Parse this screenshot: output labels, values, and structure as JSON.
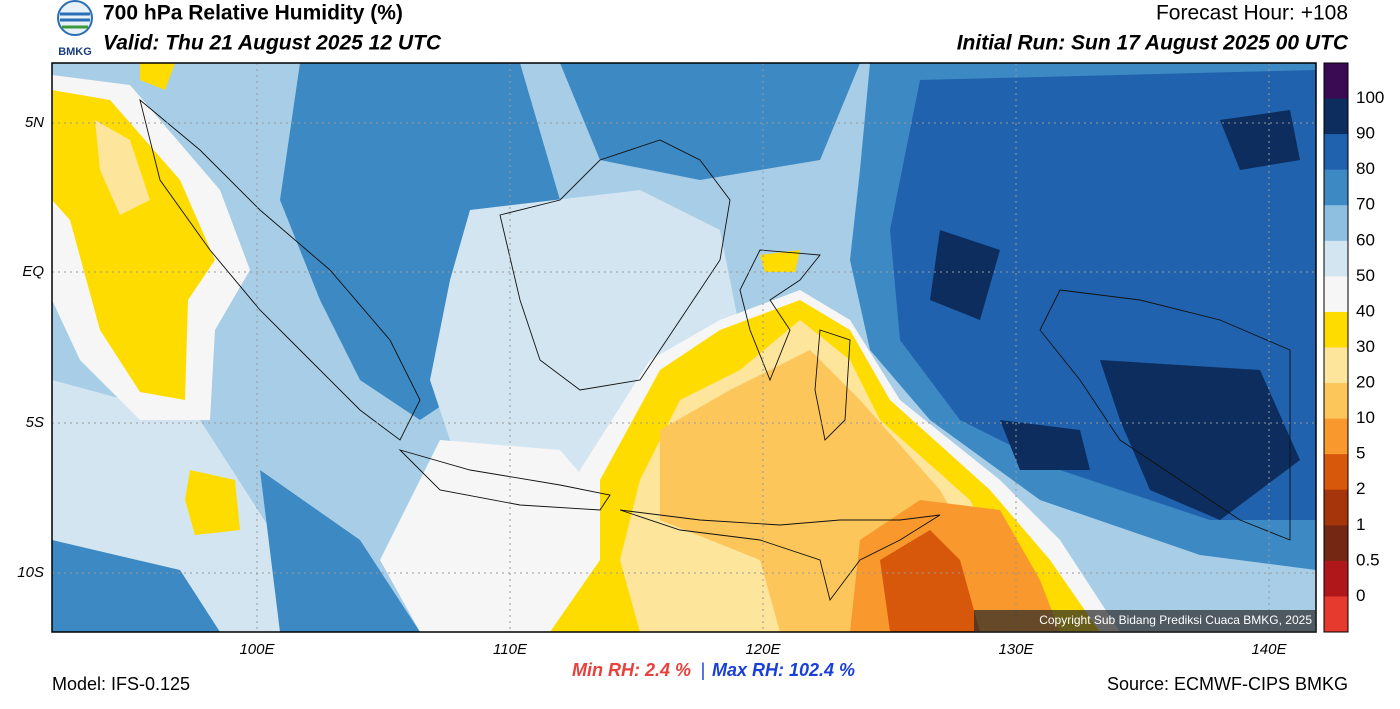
{
  "header": {
    "title": "700 hPa Relative Humidity (%)",
    "valid": "Valid: Thu 21 August 2025 12 UTC",
    "forecast_hour": "Forecast Hour: +108",
    "initial_run": "Initial Run: Sun 17 August 2025 00 UTC",
    "logo_text": "BMKG"
  },
  "map": {
    "lat_labels": [
      "5N",
      "EQ",
      "5S",
      "10S"
    ],
    "lon_labels": [
      "100E",
      "110E",
      "120E",
      "130E",
      "140E"
    ],
    "copyright": "Copyright Sub Bidang Prediksi Cuaca BMKG, 2025"
  },
  "colorbar": {
    "labels": [
      "100",
      "90",
      "80",
      "70",
      "60",
      "50",
      "40",
      "30",
      "20",
      "10",
      "5",
      "2",
      "1",
      "0.5",
      "0"
    ],
    "colors": [
      "#3a0a52",
      "#0c2d5e",
      "#2062ad",
      "#3d89c3",
      "#8ebfe0",
      "#d2e5f1",
      "#f6f6f6",
      "#ffdc00",
      "#fde59c",
      "#fdc65a",
      "#f9982c",
      "#d7570b",
      "#a6350b",
      "#742813",
      "#b0171a",
      "#e63a2e"
    ]
  },
  "footer": {
    "model": "Model: IFS-0.125",
    "min_rh": "Min RH:   2.4 %",
    "separator": "|",
    "max_rh": "Max RH: 102.4 %",
    "source": "Source: ECMWF-CIPS BMKG"
  }
}
